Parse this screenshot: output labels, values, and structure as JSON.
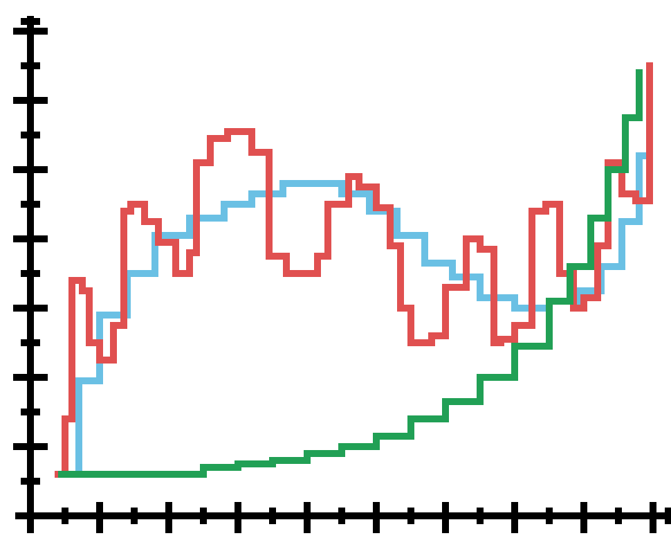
{
  "chart_data": {
    "type": "line",
    "title": "",
    "xlabel": "",
    "ylabel": "",
    "xlim": [
      0,
      18
    ],
    "ylim": [
      0,
      14
    ],
    "x_major_ticks": [
      0,
      2,
      4,
      6,
      8,
      10,
      12,
      14,
      16,
      18
    ],
    "x_minor_ticks": [
      1,
      3,
      5,
      7,
      9,
      11,
      13,
      15,
      17
    ],
    "y_major_ticks": [
      0,
      2,
      4,
      6,
      8,
      10,
      12,
      14
    ],
    "y_minor_ticks": [
      1,
      3,
      5,
      7,
      9,
      11,
      13
    ],
    "grid": false,
    "legend": "none",
    "colors": {
      "axis": "#000000",
      "blue": "#6ac0e4",
      "red": "#e05050",
      "green": "#21a055"
    },
    "series": [
      {
        "color": "#6ac0e4",
        "x": [
          0.9,
          1.4,
          2.0,
          2.8,
          3.6,
          4.6,
          5.6,
          6.4,
          7.3,
          8.2,
          9.0,
          9.8,
          10.6,
          11.4,
          12.2,
          13.0,
          14.0,
          15.0,
          15.8,
          16.5,
          17.1,
          17.6,
          17.9
        ],
        "y": [
          1.2,
          3.9,
          5.8,
          7.0,
          8.1,
          8.6,
          9.0,
          9.3,
          9.6,
          9.6,
          9.3,
          8.8,
          8.1,
          7.3,
          6.9,
          6.3,
          6.0,
          6.2,
          6.5,
          7.2,
          8.5,
          10.4,
          12.8
        ]
      },
      {
        "color": "#e05050",
        "x": [
          0.8,
          1.0,
          1.2,
          1.5,
          1.7,
          2.0,
          2.4,
          2.7,
          2.9,
          3.3,
          3.7,
          4.2,
          4.6,
          4.8,
          5.2,
          5.7,
          6.4,
          6.9,
          7.4,
          7.8,
          8.3,
          8.6,
          9.2,
          9.5,
          10.0,
          10.4,
          10.7,
          11.0,
          11.6,
          12.0,
          12.6,
          13.0,
          13.4,
          13.6,
          14.0,
          14.5,
          14.9,
          15.3,
          15.7,
          16.0,
          16.4,
          16.7,
          17.1,
          17.5,
          17.9
        ],
        "y": [
          1.2,
          2.8,
          6.8,
          6.5,
          5.0,
          4.5,
          5.5,
          8.8,
          9.0,
          8.5,
          7.9,
          7.0,
          7.6,
          10.2,
          10.9,
          11.1,
          10.5,
          7.5,
          7.0,
          7.0,
          7.5,
          9.0,
          9.8,
          9.5,
          8.9,
          7.8,
          6.0,
          5.0,
          5.2,
          6.6,
          8.0,
          7.7,
          5.0,
          5.1,
          5.5,
          8.8,
          9.0,
          7.0,
          6.0,
          6.3,
          7.8,
          10.2,
          9.3,
          9.1,
          13.0
        ]
      },
      {
        "color": "#21a055",
        "x": [
          0.9,
          2.0,
          3.0,
          4.0,
          5.0,
          6.0,
          7.0,
          8.0,
          9.0,
          10.0,
          11.0,
          12.0,
          13.0,
          14.0,
          15.0,
          15.6,
          16.2,
          16.7,
          17.2,
          17.6
        ],
        "y": [
          1.2,
          1.2,
          1.2,
          1.2,
          1.4,
          1.5,
          1.6,
          1.8,
          2.0,
          2.3,
          2.8,
          3.3,
          4.0,
          4.9,
          6.2,
          7.2,
          8.6,
          10.0,
          11.5,
          12.8
        ]
      }
    ]
  }
}
